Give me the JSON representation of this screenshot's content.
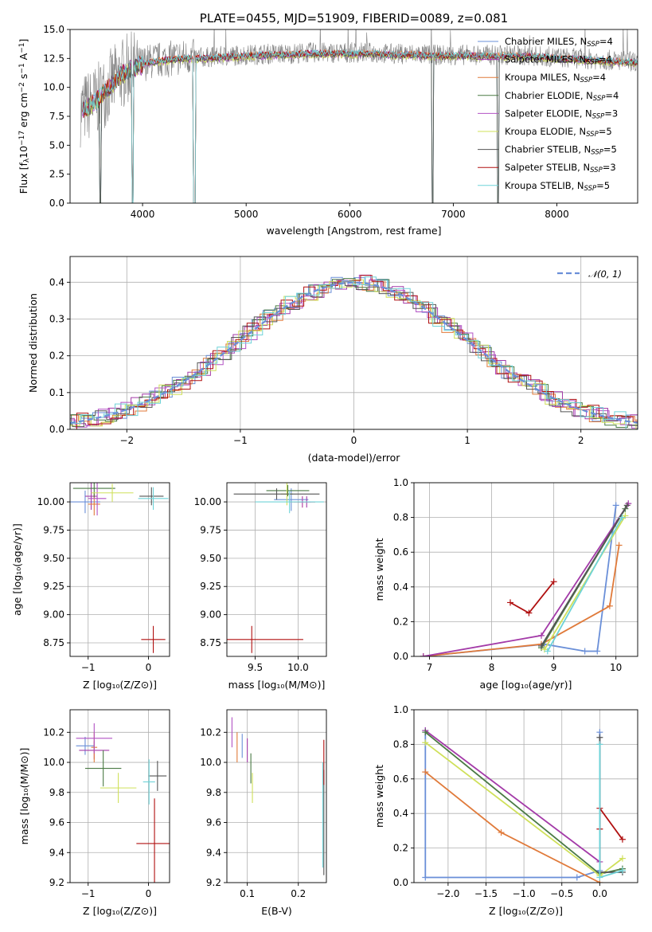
{
  "colors": {
    "chabrier_miles": "#6a8fd8",
    "salpeter_miles": "#a33aa8",
    "kroupa_miles": "#e07a3a",
    "chabrier_elodie": "#4a7a44",
    "salpeter_elodie": "#b252c4",
    "kroupa_elodie": "#cfe05a",
    "chabrier_stelib": "#555555",
    "salpeter_stelib": "#b01010",
    "kroupa_stelib": "#6fd3d8",
    "gauss": "#6a8fd8",
    "grid": "#b0b0b0"
  },
  "chart_data": [
    {
      "id": "spectrum",
      "type": "line",
      "title": "PLATE=0455, MJD=51909, FIBERID=0089, z=0.081",
      "xlabel": "wavelength [Angstrom, rest frame]",
      "ylabel": "Flux [f_λ10^-17 erg cm^-2 s^-1 A^-1]",
      "xlim": [
        3300,
        8780
      ],
      "ylim": [
        0,
        15
      ],
      "xticks": [
        "4000",
        "5000",
        "6000",
        "7000",
        "8000"
      ],
      "yticks": [
        "0.0",
        "2.5",
        "5.0",
        "7.5",
        "10.0",
        "12.5",
        "15.0"
      ],
      "grid": false,
      "legend_position": "right",
      "series": [
        {
          "key": "chabrier_miles",
          "name_prefix": "Chabrier MILES, N",
          "name_suffix": "=4"
        },
        {
          "key": "salpeter_miles",
          "name_prefix": "Salpeter MILES, N",
          "name_suffix": "=4"
        },
        {
          "key": "kroupa_miles",
          "name_prefix": "Kroupa MILES, N",
          "name_suffix": "=4"
        },
        {
          "key": "chabrier_elodie",
          "name_prefix": "Chabrier ELODIE, N",
          "name_suffix": "=4"
        },
        {
          "key": "salpeter_elodie",
          "name_prefix": "Salpeter ELODIE, N",
          "name_suffix": "=3"
        },
        {
          "key": "kroupa_elodie",
          "name_prefix": "Kroupa ELODIE, N",
          "name_suffix": "=5"
        },
        {
          "key": "chabrier_stelib",
          "name_prefix": "Chabrier STELIB, N",
          "name_suffix": "=5"
        },
        {
          "key": "salpeter_stelib",
          "name_prefix": "Salpeter STELIB, N",
          "name_suffix": "=3"
        },
        {
          "key": "kroupa_stelib",
          "name_prefix": "Kroupa STELIB, N",
          "name_suffix": "=5"
        }
      ],
      "sub": "SSP",
      "continuum": {
        "x": [
          3400,
          3550,
          3650,
          3750,
          3850,
          3950,
          4050,
          4200,
          4400,
          4600,
          4800,
          5000,
          5200,
          5400,
          5600,
          5800,
          6000,
          6200,
          6400,
          6600,
          6800,
          7000,
          7200,
          7400,
          7600,
          7800,
          8000,
          8200,
          8400,
          8600,
          8780
        ],
        "y": [
          8.0,
          8.8,
          9.8,
          10.8,
          11.5,
          11.9,
          12.2,
          12.4,
          12.6,
          12.6,
          12.7,
          12.8,
          12.9,
          12.9,
          13.0,
          13.0,
          13.0,
          13.0,
          12.9,
          12.9,
          12.8,
          12.8,
          12.8,
          12.8,
          12.8,
          12.7,
          12.6,
          12.5,
          12.4,
          12.3,
          12.2
        ]
      },
      "dips": [
        {
          "x": 3590,
          "y": 0.0
        },
        {
          "x": 3905,
          "y": 0.0
        },
        {
          "x": 4500,
          "y": 0.0
        },
        {
          "x": 6800,
          "y": 0.0
        },
        {
          "x": 7430,
          "y": 0.0
        }
      ]
    },
    {
      "id": "residuals",
      "type": "histogram",
      "xlabel": "(data-model)/error",
      "ylabel": "Normed distribution",
      "xlim": [
        -2.5,
        2.5
      ],
      "ylim": [
        0,
        0.47
      ],
      "xticks": [
        "−2",
        "−1",
        "0",
        "1",
        "2"
      ],
      "yticks": [
        "0.0",
        "0.1",
        "0.2",
        "0.3",
        "0.4"
      ],
      "grid": true,
      "legend": "𝒩(0, 1)",
      "legend_position": "top-right",
      "bin_width": 0.1
    },
    {
      "id": "age_vs_z",
      "type": "scatter",
      "xlabel": "Z [log₁₀(Z/Z⊙)]",
      "ylabel": "age  [log₁₀(age/yr)]",
      "xlim": [
        -1.3,
        0.35
      ],
      "ylim": [
        8.63,
        10.17
      ],
      "xticks": [
        "−1",
        "0"
      ],
      "yticks": [
        "8.75",
        "9.00",
        "9.25",
        "9.50",
        "9.75",
        "10.00"
      ],
      "grid": true,
      "points": [
        {
          "key": "chabrier_miles",
          "x": -1.05,
          "y": 10.0,
          "xerr": 0.25,
          "yerr": 0.1
        },
        {
          "key": "salpeter_miles",
          "x": -0.95,
          "y": 10.05,
          "xerr": 0.1,
          "yerr": 0.12
        },
        {
          "key": "kroupa_miles",
          "x": -0.9,
          "y": 9.98,
          "xerr": 0.1,
          "yerr": 0.1
        },
        {
          "key": "chabrier_elodie",
          "x": -0.9,
          "y": 10.12,
          "xerr": 0.35,
          "yerr": 0.08
        },
        {
          "key": "salpeter_elodie",
          "x": -0.85,
          "y": 10.03,
          "xerr": 0.15,
          "yerr": 0.15
        },
        {
          "key": "kroupa_elodie",
          "x": -0.6,
          "y": 10.08,
          "xerr": 0.35,
          "yerr": 0.08
        },
        {
          "key": "chabrier_stelib",
          "x": 0.05,
          "y": 10.05,
          "xerr": 0.2,
          "yerr": 0.08
        },
        {
          "key": "salpeter_stelib",
          "x": 0.08,
          "y": 8.78,
          "xerr": 0.2,
          "yerr": 0.12
        },
        {
          "key": "kroupa_stelib",
          "x": 0.08,
          "y": 10.03,
          "xerr": 0.25,
          "yerr": 0.1
        }
      ]
    },
    {
      "id": "age_vs_mass",
      "type": "scatter",
      "xlabel": "mass [log₁₀(M/M⊙)]",
      "ylabel": "",
      "xlim": [
        9.17,
        10.33
      ],
      "ylim": [
        8.63,
        10.17
      ],
      "xticks": [
        "9.5",
        "10.0"
      ],
      "yticks": [
        "8.75",
        "9.00",
        "9.25",
        "9.50",
        "9.75",
        "10.00"
      ],
      "grid": true,
      "points": [
        {
          "key": "chabrier_miles",
          "x": 9.92,
          "y": 10.02,
          "xerr": 0.2,
          "yerr": 0.1
        },
        {
          "key": "salpeter_miles",
          "x": 10.1,
          "y": 10.0,
          "xerr": 0.1,
          "yerr": 0.05
        },
        {
          "key": "kroupa_miles",
          "x": 10.05,
          "y": 10.0,
          "xerr": 0.15,
          "yerr": 0.05
        },
        {
          "key": "chabrier_elodie",
          "x": 9.88,
          "y": 10.1,
          "xerr": 0.25,
          "yerr": 0.05
        },
        {
          "key": "salpeter_elodie",
          "x": 10.05,
          "y": 10.0,
          "xerr": 0.1,
          "yerr": 0.05
        },
        {
          "key": "kroupa_elodie",
          "x": 9.87,
          "y": 10.07,
          "xerr": 0.07,
          "yerr": 0.1
        },
        {
          "key": "chabrier_stelib",
          "x": 9.75,
          "y": 10.07,
          "xerr": 0.5,
          "yerr": 0.05
        },
        {
          "key": "salpeter_stelib",
          "x": 9.46,
          "y": 8.78,
          "xerr": 0.6,
          "yerr": 0.12
        },
        {
          "key": "kroupa_stelib",
          "x": 9.9,
          "y": 10.0,
          "xerr": 0.4,
          "yerr": 0.1
        }
      ]
    },
    {
      "id": "weight_vs_age",
      "type": "line",
      "xlabel": "age  [log₁₀(age/yr)]",
      "ylabel": "mass weight",
      "xlim": [
        6.75,
        10.35
      ],
      "ylim": [
        0,
        1
      ],
      "xticks": [
        "7",
        "8",
        "9",
        "10"
      ],
      "yticks": [
        "0.0",
        "0.2",
        "0.4",
        "0.6",
        "0.8",
        "1.0"
      ],
      "grid": true,
      "series": [
        {
          "key": "chabrier_miles",
          "x": [
            6.9,
            8.85,
            9.5,
            9.7,
            10.0
          ],
          "y": [
            0.0,
            0.07,
            0.03,
            0.03,
            0.87
          ]
        },
        {
          "key": "kroupa_miles",
          "x": [
            6.9,
            8.8,
            9.9,
            10.05
          ],
          "y": [
            0.0,
            0.07,
            0.29,
            0.64
          ]
        },
        {
          "key": "salpeter_stelib",
          "x": [
            8.3,
            8.6,
            9.0
          ],
          "y": [
            0.31,
            0.25,
            0.43
          ]
        },
        {
          "key": "salpeter_miles",
          "x": [
            6.9,
            8.8,
            10.2
          ],
          "y": [
            0.0,
            0.12,
            0.88
          ]
        },
        {
          "key": "chabrier_elodie",
          "x": [
            8.8,
            10.15
          ],
          "y": [
            0.05,
            0.85
          ]
        },
        {
          "key": "kroupa_elodie",
          "x": [
            8.85,
            10.15
          ],
          "y": [
            0.04,
            0.81
          ]
        },
        {
          "key": "chabrier_stelib",
          "x": [
            8.8,
            10.18
          ],
          "y": [
            0.06,
            0.87
          ]
        },
        {
          "key": "kroupa_stelib",
          "x": [
            8.9,
            10.1
          ],
          "y": [
            0.03,
            0.8
          ]
        }
      ]
    },
    {
      "id": "mass_vs_z",
      "type": "scatter",
      "xlabel": "Z [log₁₀(Z/Z⊙)]",
      "ylabel": "mass [log₁₀(M/M⊙)]",
      "xlim": [
        -1.3,
        0.35
      ],
      "ylim": [
        9.2,
        10.35
      ],
      "xticks": [
        "−1",
        "0"
      ],
      "yticks": [
        "9.2",
        "9.4",
        "9.6",
        "9.8",
        "10.0",
        "10.2"
      ],
      "grid": true,
      "points": [
        {
          "key": "chabrier_miles",
          "x": -1.05,
          "y": 10.11,
          "xerr": 0.15,
          "yerr": 0.06
        },
        {
          "key": "salpeter_miles",
          "x": -0.9,
          "y": 10.08,
          "xerr": 0.25,
          "yerr": 0.06
        },
        {
          "key": "kroupa_miles",
          "x": -0.9,
          "y": 10.1,
          "xerr": 0.05,
          "yerr": 0.1
        },
        {
          "key": "chabrier_elodie",
          "x": -0.75,
          "y": 9.96,
          "xerr": 0.3,
          "yerr": 0.12
        },
        {
          "key": "salpeter_elodie",
          "x": -0.9,
          "y": 10.16,
          "xerr": 0.3,
          "yerr": 0.1
        },
        {
          "key": "kroupa_elodie",
          "x": -0.5,
          "y": 9.83,
          "xerr": 0.3,
          "yerr": 0.1
        },
        {
          "key": "chabrier_stelib",
          "x": 0.15,
          "y": 9.91,
          "xerr": 0.15,
          "yerr": 0.1
        },
        {
          "key": "salpeter_stelib",
          "x": 0.1,
          "y": 9.46,
          "xerr": 0.3,
          "yerr": 0.3
        },
        {
          "key": "kroupa_stelib",
          "x": 0.01,
          "y": 9.87,
          "xerr": 0.1,
          "yerr": 0.15
        }
      ]
    },
    {
      "id": "mass_vs_ebv",
      "type": "scatter",
      "xlabel": "E(B-V)",
      "ylabel": "",
      "xlim": [
        0.06,
        0.255
      ],
      "ylim": [
        9.2,
        10.35
      ],
      "xticks": [
        "0.1",
        "0.2"
      ],
      "yticks": [
        "9.2",
        "9.4",
        "9.6",
        "9.8",
        "10.0",
        "10.2"
      ],
      "grid": true,
      "points": [
        {
          "key": "chabrier_miles",
          "x": 0.09,
          "y": 10.11,
          "yerr": 0.08
        },
        {
          "key": "salpeter_miles",
          "x": 0.1,
          "y": 10.08,
          "yerr": 0.08
        },
        {
          "key": "kroupa_miles",
          "x": 0.08,
          "y": 10.1,
          "yerr": 0.1
        },
        {
          "key": "chabrier_elodie",
          "x": 0.107,
          "y": 9.96,
          "yerr": 0.1
        },
        {
          "key": "salpeter_elodie",
          "x": 0.07,
          "y": 10.2,
          "yerr": 0.1
        },
        {
          "key": "kroupa_elodie",
          "x": 0.11,
          "y": 9.83,
          "yerr": 0.1
        },
        {
          "key": "chabrier_stelib",
          "x": 0.25,
          "y": 9.6,
          "yerr": 0.35
        },
        {
          "key": "salpeter_stelib",
          "x": 0.25,
          "y": 10.0,
          "yerr": 0.15
        },
        {
          "key": "kroupa_stelib",
          "x": 0.248,
          "y": 9.65,
          "yerr": 0.35
        }
      ]
    },
    {
      "id": "weight_vs_z",
      "type": "line",
      "xlabel": "Z [log₁₀(Z/Z⊙)]",
      "ylabel": "mass weight",
      "xlim": [
        -2.45,
        0.5
      ],
      "ylim": [
        0,
        1
      ],
      "xticks": [
        "−2.0",
        "−1.5",
        "−1.0",
        "−0.5",
        "0.0"
      ],
      "yticks": [
        "0.0",
        "0.2",
        "0.4",
        "0.6",
        "0.8",
        "1.0"
      ],
      "grid": true,
      "series": [
        {
          "key": "chabrier_miles",
          "x": [
            -2.3,
            -2.3,
            -0.3,
            0.0,
            0.0
          ],
          "y": [
            0.88,
            0.03,
            0.03,
            0.07,
            0.87
          ]
        },
        {
          "key": "kroupa_miles",
          "x": [
            -2.3,
            -1.3,
            0.0
          ],
          "y": [
            0.64,
            0.29,
            0.0
          ]
        },
        {
          "key": "salpeter_miles",
          "x": [
            -2.3,
            0.0
          ],
          "y": [
            0.88,
            0.12
          ]
        },
        {
          "key": "chabrier_elodie",
          "x": [
            -2.3,
            0.0,
            0.3
          ],
          "y": [
            0.87,
            0.05,
            0.08
          ]
        },
        {
          "key": "kroupa_elodie",
          "x": [
            -2.3,
            0.0,
            0.3
          ],
          "y": [
            0.81,
            0.04,
            0.14
          ]
        },
        {
          "key": "salpeter_stelib",
          "x": [
            0.0,
            0.0,
            0.3
          ],
          "y": [
            0.31,
            0.43,
            0.25
          ]
        },
        {
          "key": "chabrier_stelib",
          "x": [
            0.0,
            0.0,
            0.3
          ],
          "y": [
            0.84,
            0.06,
            0.06
          ]
        },
        {
          "key": "kroupa_stelib",
          "x": [
            0.0,
            0.0,
            0.3
          ],
          "y": [
            0.8,
            0.03,
            0.07
          ]
        }
      ]
    }
  ]
}
